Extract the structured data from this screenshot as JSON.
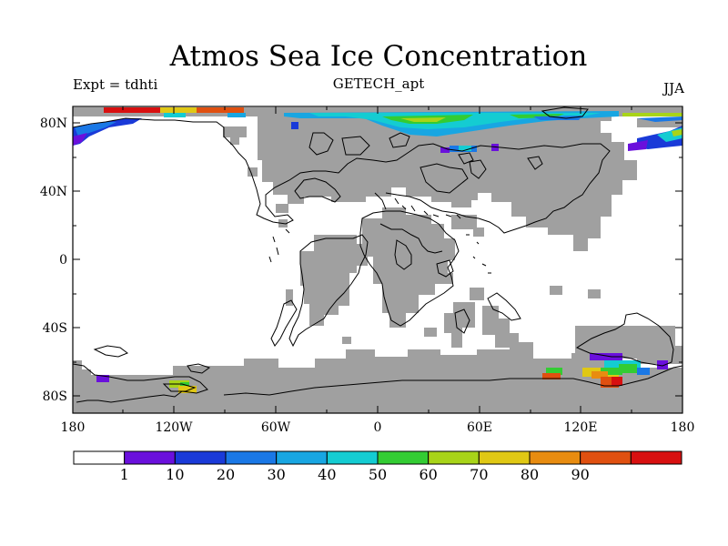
{
  "title": "Atmos Sea Ice Concentration",
  "experiment": "Expt = tdhti",
  "dataset": "GETECH_apt",
  "season": "JJA",
  "colors": {
    "land": "#a0a0a0",
    "ocean": "#ffffff",
    "outline": "#000000"
  },
  "latitude_labels": [
    "80N",
    "40N",
    "0",
    "40S",
    "80S"
  ],
  "longitude_labels": [
    "180",
    "120W",
    "60W",
    "0",
    "60E",
    "120E",
    "180"
  ],
  "colorbar": {
    "labels": [
      "1",
      "10",
      "20",
      "30",
      "40",
      "50",
      "60",
      "70",
      "80",
      "90"
    ],
    "colors": [
      "#ffffff",
      "#6a10dc",
      "#1a3ad8",
      "#1a78e6",
      "#18a6e2",
      "#14ccd2",
      "#33cc33",
      "#a8d418",
      "#e0c814",
      "#e88c10",
      "#e05010",
      "#d81010"
    ]
  }
}
